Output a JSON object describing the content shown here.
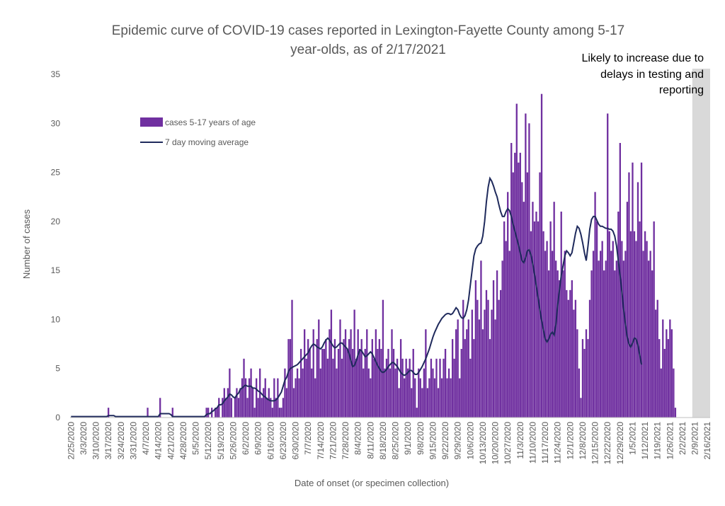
{
  "chart_data": {
    "type": "bar",
    "title_line1": "Epidemic curve of COVID-19 cases reported in Lexington-Fayette County among 5-17",
    "title_line2": "year-olds, as of 2/17/2021",
    "xlabel": "Date of onset (or specimen collection)",
    "ylabel": "Number of cases",
    "ylim": [
      0,
      35
    ],
    "yticks": [
      0,
      5,
      10,
      15,
      20,
      25,
      30,
      35
    ],
    "x_start": "2/25/2020",
    "x_end": "2/17/2021",
    "x_tick_labels": [
      "2/25/2020",
      "3/3/2020",
      "3/10/2020",
      "3/17/2020",
      "3/24/2020",
      "3/31/2020",
      "4/7/2020",
      "4/14/2020",
      "4/21/2020",
      "4/28/2020",
      "5/5/2020",
      "5/12/2020",
      "5/19/2020",
      "5/26/2020",
      "6/2/2020",
      "6/9/2020",
      "6/16/2020",
      "6/23/2020",
      "6/30/2020",
      "7/7/2020",
      "7/14/2020",
      "7/21/2020",
      "7/28/2020",
      "8/4/2020",
      "8/11/2020",
      "8/18/2020",
      "8/25/2020",
      "9/1/2020",
      "9/8/2020",
      "9/15/2020",
      "9/22/2020",
      "9/29/2020",
      "10/6/2020",
      "10/13/2020",
      "10/20/2020",
      "10/27/2020",
      "11/3/2020",
      "11/10/2020",
      "11/17/2020",
      "11/24/2020",
      "12/1/2020",
      "12/8/2020",
      "12/15/2020",
      "12/22/2020",
      "12/29/2020",
      "1/5/2021",
      "1/12/2021",
      "1/19/2021",
      "1/26/2021",
      "2/2/2021",
      "2/9/2021",
      "2/16/2021"
    ],
    "grid": false,
    "legend_position": "upper-left",
    "annotation": {
      "lines": [
        "Likely to increase due to",
        "delays in testing and",
        "reporting"
      ],
      "shaded_from": "2/8/2021",
      "shaded_to": "2/17/2021"
    },
    "series": [
      {
        "name": "cases 5-17 years of age",
        "type": "bar",
        "color": "#7030A0",
        "values": [
          0,
          0,
          0,
          0,
          0,
          0,
          0,
          0,
          0,
          0,
          0,
          0,
          0,
          0,
          0,
          0,
          0,
          0,
          0,
          0,
          0,
          1,
          0,
          0,
          0,
          0,
          0,
          0,
          0,
          0,
          0,
          0,
          0,
          0,
          0,
          0,
          0,
          0,
          0,
          0,
          0,
          0,
          0,
          1,
          0,
          0,
          0,
          0,
          0,
          0,
          2,
          0,
          0,
          0,
          0,
          0,
          0,
          1,
          0,
          0,
          0,
          0,
          0,
          0,
          0,
          0,
          0,
          0,
          0,
          0,
          0,
          0,
          0,
          0,
          0,
          0,
          1,
          1,
          0,
          1,
          0,
          1,
          1,
          2,
          0,
          2,
          3,
          2,
          3,
          5,
          2,
          0,
          2,
          3,
          2,
          3,
          4,
          6,
          4,
          2,
          4,
          5,
          3,
          1,
          4,
          2,
          5,
          2,
          3,
          4,
          2,
          3,
          2,
          1,
          4,
          2,
          4,
          1,
          1,
          2,
          5,
          3,
          8,
          8,
          12,
          3,
          4,
          5,
          4,
          7,
          5,
          9,
          6,
          8,
          7,
          5,
          9,
          4,
          8,
          10,
          5,
          7,
          7,
          8,
          6,
          9,
          11,
          6,
          8,
          5,
          7,
          10,
          6,
          8,
          9,
          7,
          8,
          9,
          7,
          11,
          6,
          9,
          7,
          8,
          5,
          7,
          9,
          5,
          4,
          8,
          6,
          9,
          7,
          8,
          7,
          12,
          5,
          6,
          7,
          5,
          9,
          7,
          5,
          6,
          3,
          8,
          6,
          4,
          6,
          5,
          6,
          3,
          7,
          4,
          1,
          5,
          4,
          3,
          5,
          9,
          3,
          4,
          6,
          5,
          4,
          6,
          3,
          6,
          4,
          6,
          7,
          4,
          5,
          4,
          8,
          6,
          9,
          10,
          4,
          7,
          12,
          8,
          9,
          10,
          6,
          11,
          8,
          14,
          12,
          10,
          16,
          9,
          11,
          13,
          12,
          8,
          11,
          14,
          10,
          15,
          12,
          13,
          16,
          20,
          18,
          23,
          17,
          28,
          25,
          27,
          32,
          26,
          27,
          24,
          22,
          31,
          25,
          30,
          19,
          22,
          20,
          21,
          20,
          25,
          33,
          19,
          17,
          18,
          15,
          20,
          17,
          22,
          16,
          15,
          14,
          21,
          15,
          17,
          13,
          12,
          13,
          14,
          11,
          12,
          9,
          5,
          2,
          8,
          7,
          9,
          8,
          12,
          15,
          17,
          23,
          20,
          16,
          17,
          18,
          15,
          16,
          31,
          19,
          17,
          18,
          15,
          16,
          21,
          28,
          18,
          16,
          17,
          22,
          25,
          19,
          26,
          19,
          18,
          24,
          20,
          26,
          17,
          19,
          18,
          16,
          17,
          15,
          20,
          11,
          12,
          8,
          5,
          10,
          7,
          9,
          8,
          10,
          9,
          5,
          1
        ]
      },
      {
        "name": "7 day moving average",
        "type": "line",
        "color": "#1F2A5C",
        "values": [
          0.1,
          0.1,
          0.1,
          0.1,
          0.1,
          0.1,
          0.1,
          0.1,
          0.1,
          0.1,
          0.1,
          0.1,
          0.1,
          0.1,
          0.1,
          0.1,
          0.1,
          0.1,
          0.1,
          0.1,
          0.1,
          0.2,
          0.2,
          0.2,
          0.2,
          0.1,
          0.1,
          0.1,
          0.1,
          0.1,
          0.1,
          0.1,
          0.1,
          0.1,
          0.1,
          0.1,
          0.1,
          0.1,
          0.1,
          0.1,
          0.1,
          0.1,
          0.1,
          0.1,
          0.1,
          0.1,
          0.1,
          0.1,
          0.1,
          0.1,
          0.4,
          0.4,
          0.4,
          0.4,
          0.4,
          0.4,
          0.3,
          0.1,
          0.1,
          0.1,
          0.1,
          0.1,
          0.1,
          0.1,
          0.1,
          0.1,
          0.1,
          0.1,
          0.1,
          0.1,
          0.1,
          0.1,
          0.1,
          0.1,
          0.1,
          0.1,
          0.3,
          0.4,
          0.4,
          0.6,
          0.7,
          0.9,
          1.0,
          1.3,
          1.3,
          1.4,
          1.7,
          1.9,
          2.1,
          2.4,
          2.3,
          2.1,
          2.0,
          2.3,
          2.5,
          2.9,
          3.0,
          3.2,
          3.3,
          3.2,
          3.2,
          3.2,
          3.0,
          3.0,
          2.9,
          2.7,
          2.6,
          2.4,
          2.2,
          2.1,
          1.9,
          1.8,
          1.7,
          1.7,
          1.7,
          1.8,
          2.0,
          2.3,
          2.6,
          3.2,
          3.8,
          4.1,
          4.7,
          5.0,
          5.1,
          5.2,
          5.3,
          5.4,
          5.6,
          5.8,
          6.0,
          6.2,
          6.4,
          6.6,
          7.0,
          7.3,
          7.5,
          7.4,
          7.2,
          7.1,
          7.0,
          7.2,
          7.6,
          7.9,
          8.1,
          7.9,
          7.6,
          7.3,
          7.1,
          7.2,
          7.4,
          7.6,
          7.6,
          7.4,
          7.2,
          7.0,
          6.5,
          5.8,
          5.2,
          5.3,
          5.8,
          6.4,
          6.9,
          6.8,
          6.5,
          6.2,
          6.3,
          6.5,
          6.7,
          6.5,
          6.1,
          5.7,
          5.3,
          5.0,
          4.7,
          4.6,
          4.7,
          4.9,
          5.2,
          5.4,
          5.6,
          5.6,
          5.4,
          5.2,
          4.9,
          4.6,
          4.4,
          4.3,
          4.4,
          4.6,
          4.8,
          4.8,
          4.6,
          4.4,
          4.4,
          4.6,
          4.9,
          5.2,
          5.6,
          6.0,
          6.5,
          7.0,
          7.6,
          8.2,
          8.7,
          9.1,
          9.5,
          9.8,
          10.1,
          10.3,
          10.5,
          10.6,
          10.6,
          10.5,
          10.6,
          10.9,
          11.2,
          11.0,
          10.5,
          10.2,
          10.1,
          10.4,
          11.0,
          12.0,
          13.5,
          15.0,
          16.5,
          17.2,
          17.5,
          17.7,
          17.8,
          18.5,
          20.0,
          22.0,
          23.5,
          24.4,
          24.1,
          23.6,
          23.0,
          22.5,
          21.7,
          21.0,
          20.5,
          20.5,
          21.0,
          21.3,
          21.1,
          20.5,
          19.7,
          19.0,
          18.3,
          17.6,
          16.8,
          16.0,
          15.8,
          16.3,
          17.0,
          17.1,
          16.6,
          15.7,
          14.6,
          13.4,
          12.2,
          11.0,
          9.9,
          8.9,
          8.0,
          7.7,
          8.0,
          8.5,
          8.7,
          8.4,
          9.5,
          11.5,
          13.0,
          14.5,
          15.5,
          16.5,
          17.0,
          16.8,
          16.5,
          16.8,
          17.8,
          18.8,
          19.5,
          19.3,
          18.7,
          17.8,
          16.8,
          16.0,
          17.5,
          19.2,
          20.2,
          20.5,
          20.5,
          20.1,
          19.7,
          19.5,
          19.5,
          19.4,
          19.3,
          19.3,
          19.2,
          19.2,
          19.0,
          18.5,
          17.5,
          16.0,
          14.5,
          12.8,
          11.0,
          9.5,
          8.2,
          7.5,
          7.2,
          7.6,
          8.1,
          8.0,
          7.4,
          6.4,
          5.4
        ]
      }
    ]
  }
}
